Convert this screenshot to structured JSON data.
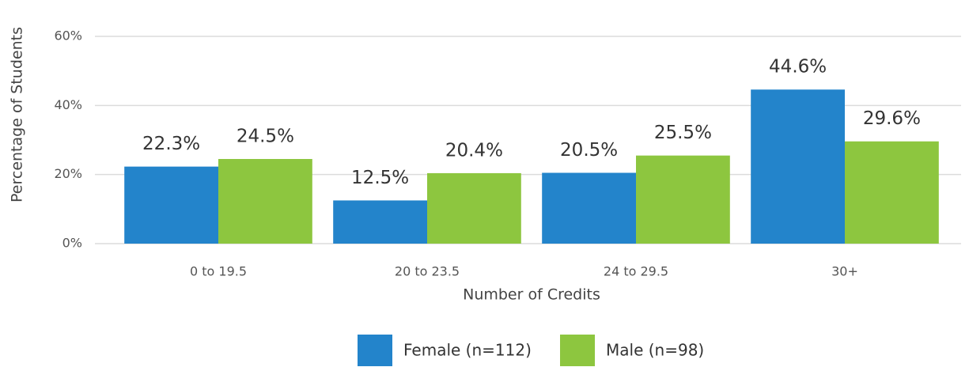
{
  "chart_data": {
    "type": "bar",
    "categories": [
      "0 to 19.5",
      "20 to 23.5",
      "24 to 29.5",
      "30+"
    ],
    "series": [
      {
        "name": "Female (n=112)",
        "color": "#2384cb",
        "values": [
          22.3,
          12.5,
          20.5,
          44.6
        ],
        "value_labels": [
          "22.3%",
          "12.5%",
          "20.5%",
          "44.6%"
        ]
      },
      {
        "name": "Male (n=98)",
        "color": "#8dc63f",
        "values": [
          24.5,
          20.4,
          25.5,
          29.6
        ],
        "value_labels": [
          "24.5%",
          "20.4%",
          "25.5%",
          "29.6%"
        ]
      }
    ],
    "xlabel": "Number of Credits",
    "ylabel": "Percentage of Students",
    "ylim": [
      0,
      60
    ],
    "yticks": [
      {
        "value": 0,
        "label": "0%"
      },
      {
        "value": 20,
        "label": "20%"
      },
      {
        "value": 40,
        "label": "40%"
      },
      {
        "value": 60,
        "label": "60%"
      }
    ],
    "grid": true,
    "legend": "bottom"
  }
}
